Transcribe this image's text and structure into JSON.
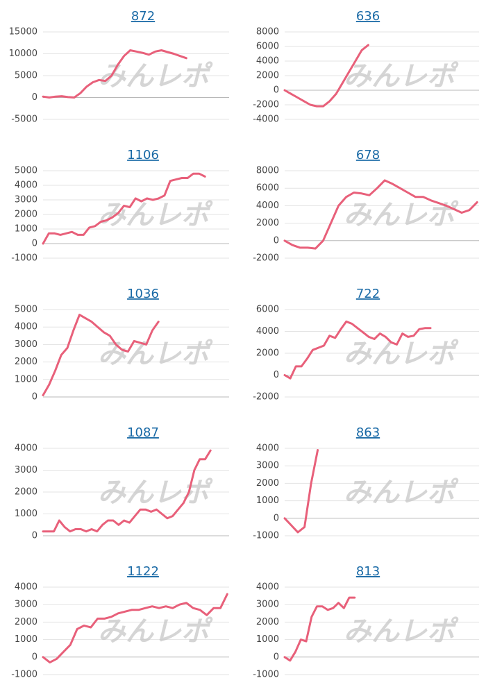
{
  "watermark": "みんレポ",
  "chart_data": [
    {
      "type": "line",
      "title": "872",
      "color": "#e8607a",
      "ylim": [
        -5000,
        15000
      ],
      "yticks": [
        -5000,
        0,
        5000,
        10000,
        15000
      ],
      "grid": true,
      "values": [
        200,
        0,
        200,
        300,
        100,
        0,
        1000,
        2500,
        3500,
        4000,
        3800,
        5000,
        7500,
        9500,
        10800,
        10500,
        10200,
        9800,
        10500,
        10800,
        10400,
        10000,
        9500,
        9000
      ]
    },
    {
      "type": "line",
      "title": "636",
      "color": "#e8607a",
      "ylim": [
        -4000,
        8000
      ],
      "yticks": [
        -4000,
        -2000,
        0,
        2000,
        4000,
        6000,
        8000
      ],
      "grid": true,
      "values": [
        0,
        -500,
        -1000,
        -1500,
        -2000,
        -2200,
        -2200,
        -1500,
        -500,
        1000,
        2500,
        4000,
        5500,
        6200
      ]
    },
    {
      "type": "line",
      "title": "1106",
      "color": "#e8607a",
      "ylim": [
        -1000,
        5000
      ],
      "yticks": [
        -1000,
        0,
        1000,
        2000,
        3000,
        4000,
        5000
      ],
      "grid": true,
      "values": [
        0,
        700,
        700,
        600,
        700,
        800,
        600,
        600,
        1100,
        1200,
        1500,
        1600,
        1800,
        2100,
        2600,
        2500,
        3100,
        2900,
        3100,
        3000,
        3100,
        3300,
        4300,
        4400,
        4500,
        4500,
        4800,
        4800,
        4600
      ]
    },
    {
      "type": "line",
      "title": "678",
      "color": "#e8607a",
      "ylim": [
        -2000,
        8000
      ],
      "yticks": [
        -2000,
        0,
        2000,
        4000,
        6000,
        8000
      ],
      "grid": true,
      "values": [
        0,
        -500,
        -800,
        -800,
        -900,
        0,
        2000,
        4000,
        5000,
        5500,
        5400,
        5200,
        6000,
        6900,
        6500,
        6000,
        5500,
        5000,
        5000,
        4600,
        4300,
        4000,
        3600,
        3200,
        3500,
        4400
      ]
    },
    {
      "type": "line",
      "title": "1036",
      "color": "#e8607a",
      "ylim": [
        0,
        5000
      ],
      "yticks": [
        0,
        1000,
        2000,
        3000,
        4000,
        5000
      ],
      "grid": true,
      "values": [
        100,
        700,
        1500,
        2400,
        2800,
        3800,
        4700,
        4500,
        4300,
        4000,
        3700,
        3500,
        3000,
        2700,
        2600,
        3200,
        3100,
        3000,
        3800,
        4300
      ]
    },
    {
      "type": "line",
      "title": "722",
      "color": "#e8607a",
      "ylim": [
        -2000,
        6000
      ],
      "yticks": [
        -2000,
        0,
        2000,
        4000,
        6000
      ],
      "grid": true,
      "values": [
        0,
        -300,
        800,
        800,
        1500,
        2300,
        2500,
        2700,
        3600,
        3400,
        4200,
        4900,
        4700,
        4300,
        3900,
        3500,
        3300,
        3800,
        3500,
        3000,
        2800,
        3800,
        3500,
        3600,
        4200,
        4300,
        4300
      ]
    },
    {
      "type": "line",
      "title": "1087",
      "color": "#e8607a",
      "ylim": [
        0,
        4000
      ],
      "yticks": [
        0,
        1000,
        2000,
        3000,
        4000
      ],
      "grid": true,
      "values": [
        200,
        200,
        200,
        700,
        400,
        200,
        300,
        300,
        200,
        300,
        200,
        500,
        700,
        700,
        500,
        700,
        600,
        900,
        1200,
        1200,
        1100,
        1200,
        1000,
        800,
        900,
        1200,
        1500,
        2000,
        3000,
        3500,
        3500,
        3900
      ]
    },
    {
      "type": "line",
      "title": "863",
      "color": "#e8607a",
      "ylim": [
        -1000,
        4000
      ],
      "yticks": [
        -1000,
        0,
        1000,
        2000,
        3000,
        4000
      ],
      "grid": true,
      "values": [
        0,
        -400,
        -800,
        -500,
        2000,
        3900
      ]
    },
    {
      "type": "line",
      "title": "1122",
      "color": "#e8607a",
      "ylim": [
        -1000,
        4000
      ],
      "yticks": [
        -1000,
        0,
        1000,
        2000,
        3000,
        4000
      ],
      "grid": true,
      "values": [
        0,
        -300,
        -100,
        300,
        700,
        1600,
        1800,
        1700,
        2200,
        2200,
        2300,
        2500,
        2600,
        2700,
        2700,
        2800,
        2900,
        2800,
        2900,
        2800,
        3000,
        3100,
        2800,
        2700,
        2400,
        2800,
        2800,
        3600
      ]
    },
    {
      "type": "line",
      "title": "813",
      "color": "#e8607a",
      "ylim": [
        -1000,
        4000
      ],
      "yticks": [
        -1000,
        0,
        1000,
        2000,
        3000,
        4000
      ],
      "grid": true,
      "values": [
        0,
        -200,
        300,
        1000,
        900,
        2300,
        2900,
        2900,
        2700,
        2800,
        3100,
        2800,
        3400,
        3400
      ]
    }
  ]
}
